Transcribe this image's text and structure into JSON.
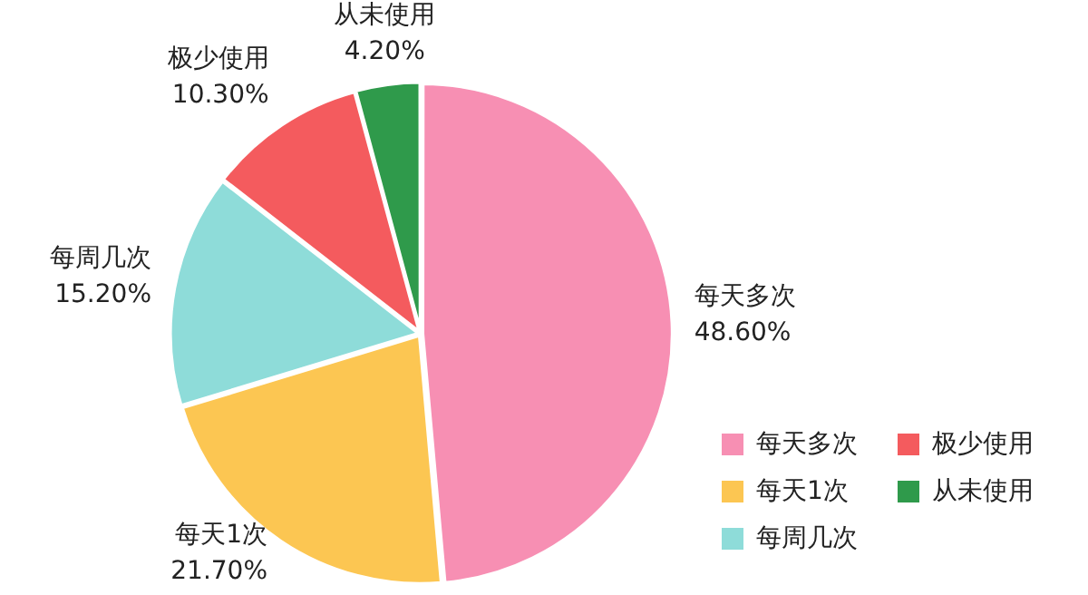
{
  "chart_data": {
    "type": "pie",
    "categories": [
      "每天多次",
      "每天1次",
      "每周几次",
      "极少使用",
      "从未使用"
    ],
    "values": [
      48.6,
      21.7,
      15.2,
      10.3,
      4.2
    ],
    "colors": [
      "#f78fb3",
      "#fcc652",
      "#8edcd9",
      "#f45b5e",
      "#2f9a4b"
    ],
    "value_labels": [
      "48.60%",
      "21.70%",
      "15.20%",
      "10.30%",
      "4.20%"
    ],
    "legend": "bottom right"
  }
}
